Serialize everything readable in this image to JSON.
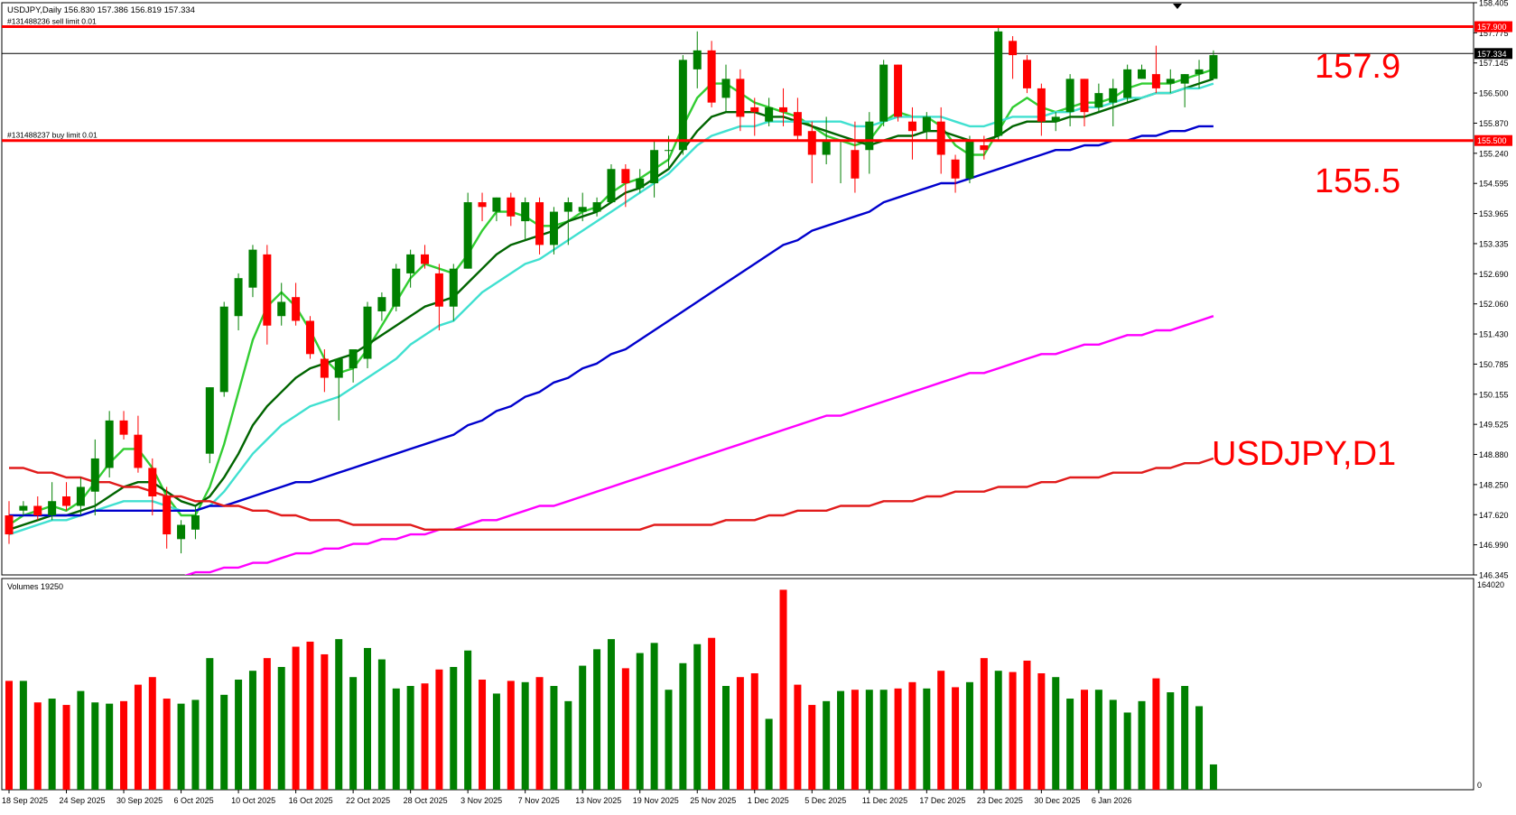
{
  "header": {
    "symbol_line": "USDJPY,Daily  156.830 157.386 156.819 157.334",
    "menu_arrow": "triangle-down-icon"
  },
  "orders": {
    "sell_limit": {
      "label": "#131488236 sell limit 0.01",
      "price": 157.9,
      "price_label": "157.900"
    },
    "buy_limit": {
      "label": "#131488237 buy limit 0.01",
      "price": 155.5,
      "price_label": "155.500"
    }
  },
  "current_price": {
    "price": 157.334,
    "label": "157.334"
  },
  "annotations": {
    "upper_level": "157.9",
    "lower_level": "155.5",
    "instrument": "USDJPY,D1"
  },
  "volumes": {
    "label": "Volumes 19250",
    "axis_top": "164020",
    "axis_bottom": "0",
    "max": 164020
  },
  "colors": {
    "bull": "#008000",
    "bear": "#ff0000",
    "level_line": "#ff0000",
    "ma_fast": "#32cd32",
    "ma_mid": "#006400",
    "ma_cyan": "#40e0d0",
    "ma_blue": "#0000cd",
    "ma_magenta": "#ff00ff",
    "ma_red": "#e11b1b"
  },
  "chart_data": {
    "type": "candlestick",
    "timeframe": "D1",
    "ylim": [
      146.345,
      158.405
    ],
    "price_ticks": [
      "158.405",
      "157.775",
      "157.145",
      "156.500",
      "155.870",
      "155.240",
      "154.595",
      "153.965",
      "153.335",
      "152.690",
      "152.060",
      "151.430",
      "150.785",
      "150.155",
      "149.525",
      "148.880",
      "148.250",
      "147.620",
      "146.990",
      "146.345"
    ],
    "date_labels": [
      "18 Sep 2025",
      "24 Sep 2025",
      "30 Sep 2025",
      "6 Oct 2025",
      "10 Oct 2025",
      "16 Oct 2025",
      "22 Oct 2025",
      "28 Oct 2025",
      "3 Nov 2025",
      "7 Nov 2025",
      "13 Nov 2025",
      "19 Nov 2025",
      "25 Nov 2025",
      "1 Dec 2025",
      "5 Dec 2025",
      "11 Dec 2025",
      "17 Dec 2025",
      "23 Dec 2025",
      "30 Dec 2025",
      "6 Jan 2026"
    ],
    "candles": [
      [
        147.6,
        147.9,
        147.0,
        147.2
      ],
      [
        147.7,
        147.9,
        147.6,
        147.8
      ],
      [
        147.8,
        148.0,
        147.5,
        147.6
      ],
      [
        147.6,
        148.3,
        147.5,
        147.9
      ],
      [
        148.0,
        148.3,
        147.7,
        147.8
      ],
      [
        147.8,
        148.4,
        147.6,
        148.2
      ],
      [
        148.1,
        149.2,
        147.6,
        148.8
      ],
      [
        148.6,
        149.8,
        148.4,
        149.6
      ],
      [
        149.6,
        149.8,
        149.2,
        149.3
      ],
      [
        149.3,
        149.7,
        148.5,
        148.6
      ],
      [
        148.6,
        148.8,
        147.6,
        148.0
      ],
      [
        148.0,
        148.2,
        146.9,
        147.2
      ],
      [
        147.1,
        147.5,
        146.8,
        147.4
      ],
      [
        147.3,
        147.8,
        147.1,
        147.6
      ],
      [
        148.9,
        150.3,
        148.7,
        150.3
      ],
      [
        150.2,
        152.1,
        150.1,
        152.0
      ],
      [
        151.8,
        152.7,
        151.5,
        152.6
      ],
      [
        152.4,
        153.3,
        152.2,
        153.2
      ],
      [
        153.1,
        153.3,
        151.2,
        151.6
      ],
      [
        151.8,
        152.5,
        151.6,
        152.1
      ],
      [
        152.2,
        152.5,
        151.6,
        151.7
      ],
      [
        151.7,
        151.8,
        150.9,
        151.0
      ],
      [
        150.9,
        151.1,
        150.2,
        150.5
      ],
      [
        150.5,
        150.8,
        149.6,
        150.9
      ],
      [
        150.7,
        151.0,
        150.4,
        151.1
      ],
      [
        150.9,
        152.1,
        150.7,
        152.0
      ],
      [
        151.9,
        152.3,
        151.7,
        152.2
      ],
      [
        152.0,
        152.9,
        151.9,
        152.8
      ],
      [
        152.7,
        153.2,
        152.4,
        153.1
      ],
      [
        153.1,
        153.3,
        152.8,
        152.9
      ],
      [
        152.7,
        152.9,
        151.5,
        152.0
      ],
      [
        152.0,
        152.9,
        151.7,
        152.8
      ],
      [
        152.8,
        154.4,
        152.8,
        154.2
      ],
      [
        154.2,
        154.4,
        153.8,
        154.1
      ],
      [
        154.0,
        154.3,
        153.8,
        154.3
      ],
      [
        154.3,
        154.4,
        153.7,
        153.9
      ],
      [
        153.8,
        154.3,
        153.4,
        154.2
      ],
      [
        154.2,
        154.3,
        153.1,
        153.3
      ],
      [
        153.3,
        154.1,
        153.1,
        154.0
      ],
      [
        154.0,
        154.3,
        153.3,
        154.2
      ],
      [
        154.0,
        154.4,
        153.8,
        154.1
      ],
      [
        154.0,
        154.3,
        153.9,
        154.2
      ],
      [
        154.2,
        155.0,
        154.2,
        154.9
      ],
      [
        154.9,
        155.0,
        154.1,
        154.6
      ],
      [
        154.5,
        154.9,
        154.4,
        154.7
      ],
      [
        154.6,
        155.5,
        154.3,
        155.3
      ],
      [
        155.3,
        155.6,
        154.9,
        155.3
      ],
      [
        155.3,
        157.3,
        155.2,
        157.2
      ],
      [
        157.0,
        157.8,
        156.6,
        157.4
      ],
      [
        157.4,
        157.6,
        156.2,
        156.3
      ],
      [
        156.4,
        157.1,
        156.1,
        156.8
      ],
      [
        156.8,
        157.0,
        155.7,
        156.0
      ],
      [
        156.2,
        156.4,
        155.6,
        156.1
      ],
      [
        155.9,
        156.4,
        155.8,
        156.2
      ],
      [
        156.2,
        156.6,
        155.8,
        156.1
      ],
      [
        156.1,
        156.4,
        155.5,
        155.6
      ],
      [
        155.7,
        155.9,
        154.6,
        155.2
      ],
      [
        155.2,
        156.0,
        155.0,
        155.5
      ],
      [
        155.5,
        155.5,
        154.6,
        155.5
      ],
      [
        155.3,
        155.9,
        154.4,
        154.7
      ],
      [
        155.3,
        156.1,
        154.8,
        155.9
      ],
      [
        155.9,
        157.2,
        155.8,
        157.1
      ],
      [
        157.1,
        157.1,
        155.9,
        156.0
      ],
      [
        155.9,
        156.2,
        155.1,
        155.7
      ],
      [
        155.7,
        156.1,
        155.5,
        156.0
      ],
      [
        155.9,
        156.2,
        154.8,
        155.2
      ],
      [
        155.1,
        155.2,
        154.4,
        154.7
      ],
      [
        154.7,
        155.6,
        154.6,
        155.5
      ],
      [
        155.4,
        155.6,
        155.1,
        155.3
      ],
      [
        155.6,
        157.9,
        155.5,
        157.8
      ],
      [
        157.6,
        157.7,
        156.8,
        157.3
      ],
      [
        157.2,
        157.3,
        156.5,
        156.6
      ],
      [
        156.6,
        156.7,
        155.6,
        155.9
      ],
      [
        155.9,
        156.1,
        155.7,
        156.0
      ],
      [
        156.1,
        156.9,
        155.8,
        156.8
      ],
      [
        156.8,
        156.8,
        155.8,
        156.1
      ],
      [
        156.2,
        156.7,
        156.1,
        156.5
      ],
      [
        156.3,
        156.8,
        155.8,
        156.6
      ],
      [
        156.4,
        157.1,
        156.3,
        157.0
      ],
      [
        156.8,
        157.1,
        156.8,
        157.0
      ],
      [
        156.9,
        157.5,
        156.5,
        156.6
      ],
      [
        156.7,
        157.0,
        156.5,
        156.8
      ],
      [
        156.7,
        156.9,
        156.2,
        156.9
      ],
      [
        156.9,
        157.2,
        156.6,
        157.0
      ],
      [
        156.8,
        157.4,
        156.8,
        157.3
      ]
    ],
    "volumes": [
      86000,
      86000,
      69000,
      72000,
      67000,
      78000,
      69000,
      68000,
      70000,
      83000,
      89000,
      72000,
      68000,
      71000,
      104000,
      75000,
      87000,
      94000,
      104000,
      97000,
      113000,
      117000,
      107000,
      119000,
      89000,
      112000,
      103000,
      80000,
      82000,
      84000,
      95000,
      97000,
      110000,
      87000,
      76000,
      86000,
      85000,
      89000,
      82000,
      70000,
      98000,
      111000,
      119000,
      96000,
      108000,
      116000,
      79000,
      100000,
      115000,
      120000,
      82000,
      89000,
      92000,
      56000,
      158000,
      83000,
      67000,
      70000,
      78000,
      79000,
      79000,
      79000,
      80000,
      85000,
      80000,
      94000,
      81000,
      85000,
      104000,
      94000,
      93000,
      102000,
      92000,
      89000,
      72000,
      79000,
      79000,
      71000,
      61000,
      70000,
      88000,
      77000,
      82000,
      66000,
      20000
    ],
    "moving_averages": [
      {
        "color": "#32cd32",
        "values": [
          147.4,
          147.6,
          147.7,
          147.8,
          147.7,
          147.9,
          148.3,
          148.7,
          149.0,
          149.0,
          148.6,
          148.0,
          147.6,
          147.6,
          148.2,
          149.1,
          150.2,
          151.3,
          152.0,
          152.3,
          152.0,
          151.5,
          150.9,
          150.6,
          150.7,
          151.1,
          151.6,
          152.1,
          152.6,
          152.9,
          152.8,
          152.7,
          153.1,
          153.6,
          154.0,
          154.0,
          153.9,
          153.7,
          153.7,
          153.8,
          154.0,
          154.1,
          154.4,
          154.6,
          154.7,
          154.9,
          155.1,
          155.8,
          156.4,
          156.7,
          156.7,
          156.5,
          156.3,
          156.2,
          156.1,
          156.0,
          155.8,
          155.6,
          155.5,
          155.4,
          155.5,
          155.9,
          156.1,
          156.0,
          156.0,
          155.8,
          155.4,
          155.2,
          155.2,
          155.7,
          156.2,
          156.4,
          156.2,
          156.1,
          156.2,
          156.3,
          156.3,
          156.4,
          156.6,
          156.7,
          156.7,
          156.7,
          156.8,
          156.9,
          157.0
        ]
      },
      {
        "color": "#006400",
        "values": [
          147.3,
          147.4,
          147.5,
          147.6,
          147.6,
          147.7,
          147.8,
          148.0,
          148.2,
          148.3,
          148.3,
          148.1,
          147.9,
          147.8,
          148.0,
          148.4,
          148.9,
          149.5,
          149.9,
          150.2,
          150.5,
          150.7,
          150.8,
          150.9,
          151.0,
          151.2,
          151.4,
          151.6,
          151.8,
          152.0,
          152.1,
          152.2,
          152.5,
          152.8,
          153.1,
          153.3,
          153.4,
          153.5,
          153.6,
          153.8,
          153.9,
          154.0,
          154.2,
          154.4,
          154.5,
          154.7,
          154.9,
          155.3,
          155.7,
          156.0,
          156.1,
          156.1,
          156.1,
          156.0,
          156.0,
          155.9,
          155.8,
          155.7,
          155.6,
          155.5,
          155.4,
          155.5,
          155.6,
          155.6,
          155.7,
          155.7,
          155.6,
          155.5,
          155.5,
          155.6,
          155.8,
          155.9,
          155.9,
          155.9,
          156.0,
          156.0,
          156.1,
          156.2,
          156.3,
          156.4,
          156.5,
          156.5,
          156.6,
          156.7,
          156.8
        ]
      },
      {
        "color": "#40e0d0",
        "values": [
          147.2,
          147.3,
          147.4,
          147.5,
          147.5,
          147.6,
          147.7,
          147.8,
          147.9,
          147.9,
          147.9,
          147.8,
          147.7,
          147.7,
          147.8,
          148.1,
          148.5,
          148.9,
          149.2,
          149.5,
          149.7,
          149.9,
          150.0,
          150.1,
          150.3,
          150.5,
          150.7,
          150.9,
          151.2,
          151.4,
          151.6,
          151.7,
          152.0,
          152.3,
          152.5,
          152.7,
          152.9,
          153.0,
          153.2,
          153.4,
          153.6,
          153.8,
          154.0,
          154.2,
          154.4,
          154.6,
          154.8,
          155.1,
          155.4,
          155.6,
          155.7,
          155.8,
          155.8,
          155.9,
          155.9,
          155.9,
          155.9,
          155.9,
          155.9,
          155.8,
          155.8,
          155.9,
          156.0,
          156.0,
          156.0,
          156.0,
          155.9,
          155.8,
          155.8,
          155.9,
          156.0,
          156.0,
          156.0,
          156.1,
          156.1,
          156.2,
          156.2,
          156.3,
          156.4,
          156.4,
          156.5,
          156.5,
          156.6,
          156.6,
          156.7
        ]
      },
      {
        "color": "#0000cd",
        "values": [
          147.6,
          147.6,
          147.6,
          147.6,
          147.6,
          147.6,
          147.7,
          147.7,
          147.7,
          147.7,
          147.7,
          147.7,
          147.7,
          147.7,
          147.8,
          147.8,
          147.9,
          148.0,
          148.1,
          148.2,
          148.3,
          148.3,
          148.4,
          148.5,
          148.6,
          148.7,
          148.8,
          148.9,
          149.0,
          149.1,
          149.2,
          149.3,
          149.5,
          149.6,
          149.8,
          149.9,
          150.1,
          150.2,
          150.4,
          150.5,
          150.7,
          150.8,
          151.0,
          151.1,
          151.3,
          151.5,
          151.7,
          151.9,
          152.1,
          152.3,
          152.5,
          152.7,
          152.9,
          153.1,
          153.3,
          153.4,
          153.6,
          153.7,
          153.8,
          153.9,
          154.0,
          154.2,
          154.3,
          154.4,
          154.5,
          154.6,
          154.6,
          154.7,
          154.8,
          154.9,
          155.0,
          155.1,
          155.2,
          155.3,
          155.3,
          155.4,
          155.4,
          155.5,
          155.5,
          155.6,
          155.6,
          155.7,
          155.7,
          155.8,
          155.8
        ]
      },
      {
        "color": "#ff00ff",
        "values": [
          null,
          null,
          null,
          null,
          null,
          null,
          null,
          null,
          null,
          null,
          null,
          146.3,
          146.3,
          146.4,
          146.4,
          146.5,
          146.5,
          146.6,
          146.6,
          146.7,
          146.8,
          146.8,
          146.9,
          146.9,
          147.0,
          147.0,
          147.1,
          147.1,
          147.2,
          147.2,
          147.3,
          147.3,
          147.4,
          147.5,
          147.5,
          147.6,
          147.7,
          147.8,
          147.8,
          147.9,
          148.0,
          148.1,
          148.2,
          148.3,
          148.4,
          148.5,
          148.6,
          148.7,
          148.8,
          148.9,
          149.0,
          149.1,
          149.2,
          149.3,
          149.4,
          149.5,
          149.6,
          149.7,
          149.7,
          149.8,
          149.9,
          150.0,
          150.1,
          150.2,
          150.3,
          150.4,
          150.5,
          150.6,
          150.6,
          150.7,
          150.8,
          150.9,
          151.0,
          151.0,
          151.1,
          151.2,
          151.2,
          151.3,
          151.4,
          151.4,
          151.5,
          151.5,
          151.6,
          151.7,
          151.8
        ]
      },
      {
        "color": "#e11b1b",
        "values": [
          148.6,
          148.6,
          148.5,
          148.5,
          148.4,
          148.4,
          148.3,
          148.3,
          148.2,
          148.2,
          148.1,
          148.0,
          148.0,
          147.9,
          147.9,
          147.8,
          147.8,
          147.7,
          147.7,
          147.6,
          147.6,
          147.5,
          147.5,
          147.5,
          147.4,
          147.4,
          147.4,
          147.4,
          147.4,
          147.3,
          147.3,
          147.3,
          147.3,
          147.3,
          147.3,
          147.3,
          147.3,
          147.3,
          147.3,
          147.3,
          147.3,
          147.3,
          147.3,
          147.3,
          147.3,
          147.4,
          147.4,
          147.4,
          147.4,
          147.4,
          147.5,
          147.5,
          147.5,
          147.6,
          147.6,
          147.7,
          147.7,
          147.7,
          147.8,
          147.8,
          147.8,
          147.9,
          147.9,
          147.9,
          148.0,
          148.0,
          148.1,
          148.1,
          148.1,
          148.2,
          148.2,
          148.2,
          148.3,
          148.3,
          148.4,
          148.4,
          148.4,
          148.5,
          148.5,
          148.5,
          148.6,
          148.6,
          148.7,
          148.7,
          148.8
        ]
      }
    ]
  }
}
